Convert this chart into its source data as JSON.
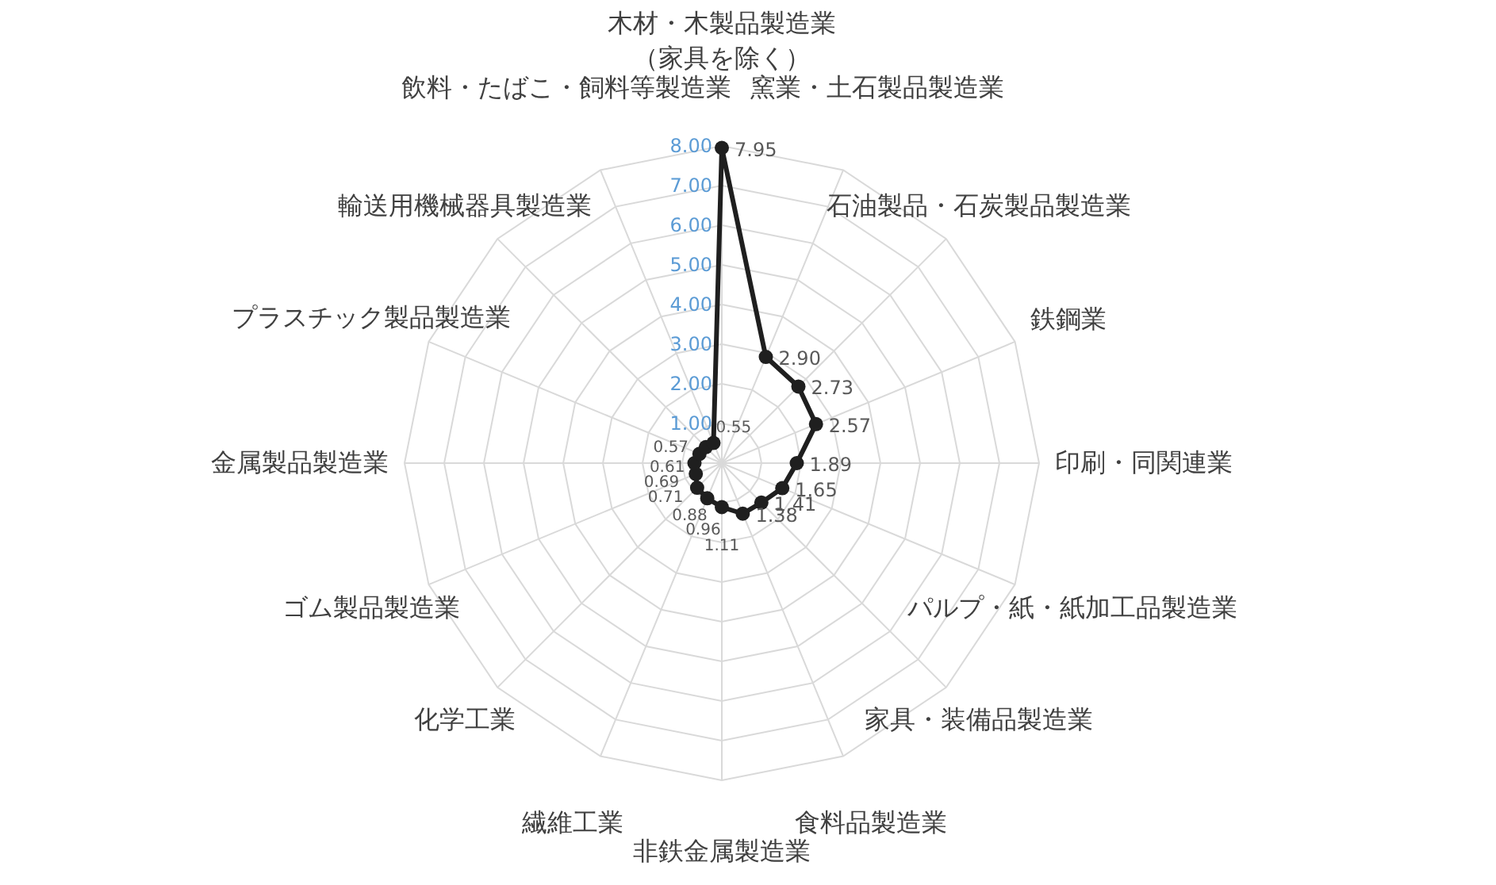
{
  "chart_data": {
    "type": "radar",
    "categories": [
      "木材・木製品製造業（家具を除く）",
      "窯業・土石製品製造業",
      "石油製品・石炭製品製造業",
      "鉄鋼業",
      "印刷・同関連業",
      "パルプ・紙・紙加工品製造業",
      "家具・装備品製造業",
      "食料品製造業",
      "非鉄金属製造業",
      "繊維工業",
      "化学工業",
      "ゴム製品製造業",
      "金属製品製造業",
      "プラスチック製品製造業",
      "輸送用機械器具製造業",
      "飲料・たばこ・飼料等製造業"
    ],
    "series": [
      {
        "color": "#1f1f1f",
        "values": [
          7.95,
          2.9,
          2.73,
          2.57,
          1.89,
          1.65,
          1.41,
          1.38,
          1.11,
          0.96,
          0.88,
          0.71,
          0.69,
          0.61,
          0.57,
          0.55
        ],
        "value_labels": [
          "7.95",
          "2.90",
          "2.73",
          "2.57",
          "1.89",
          "1.65",
          "1.41",
          "1.38",
          "1.11",
          "0.96",
          "0.88",
          "0.71",
          "0.69",
          "0.61",
          "0.57",
          "0.55"
        ]
      }
    ],
    "ylim": [
      0,
      8
    ],
    "yticks": [
      {
        "value": 1,
        "label": "1.00"
      },
      {
        "value": 2,
        "label": "2.00"
      },
      {
        "value": 3,
        "label": "3.00"
      },
      {
        "value": 4,
        "label": "4.00"
      },
      {
        "value": 5,
        "label": "5.00"
      },
      {
        "value": 6,
        "label": "6.00"
      },
      {
        "value": 7,
        "label": "7.00"
      },
      {
        "value": 8,
        "label": "8.00"
      }
    ],
    "grid": true,
    "marker": "circle",
    "line_style": "solid"
  }
}
